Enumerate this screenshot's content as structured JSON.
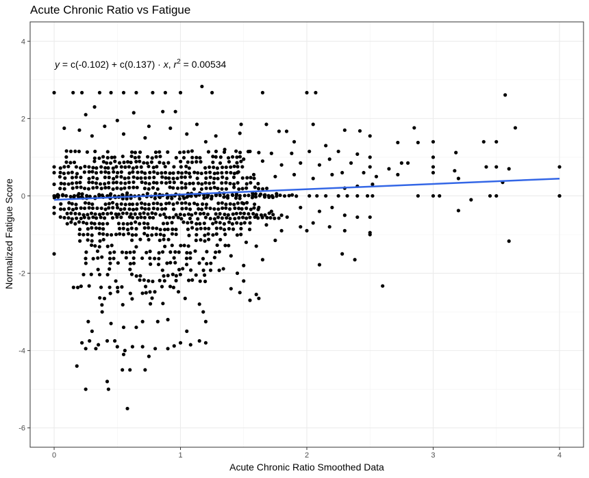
{
  "chart_data": {
    "type": "scatter",
    "title": "Acute Chronic Ratio vs Fatigue",
    "xlabel": "Acute Chronic Ratio Smoothed Data",
    "ylabel": "Normalized Fatigue Score",
    "xlim": [
      -0.19,
      4.19
    ],
    "ylim": [
      -6.5,
      4.5
    ],
    "x_ticks": [
      "0",
      "1",
      "2",
      "3",
      "4"
    ],
    "y_ticks": [
      "4",
      "2",
      "0",
      "-2",
      "-4",
      "-6"
    ],
    "grid": true,
    "theme": "black-and-white",
    "annotation": {
      "text_y": "y",
      "text_eq": " = c(-0.102) + c(0.137) · ",
      "text_x": "x",
      "text_sep": ",  ",
      "text_r": "r",
      "text_sup": "2",
      "text_val": " = 0.00534"
    },
    "regression": {
      "intercept": -0.102,
      "slope": 0.137,
      "r2": 0.00534,
      "color": "#3366e6",
      "x_range": [
        0,
        4
      ]
    },
    "point_color": "#000000",
    "points": [
      [
        0.0,
        2.67
      ],
      [
        0.15,
        2.67
      ],
      [
        0.22,
        2.67
      ],
      [
        0.36,
        2.67
      ],
      [
        0.45,
        2.67
      ],
      [
        0.55,
        2.67
      ],
      [
        0.65,
        2.67
      ],
      [
        0.78,
        2.67
      ],
      [
        0.88,
        2.67
      ],
      [
        1.0,
        2.67
      ],
      [
        1.17,
        2.83
      ],
      [
        1.25,
        2.67
      ],
      [
        1.65,
        2.67
      ],
      [
        2.0,
        2.67
      ],
      [
        2.07,
        2.67
      ],
      [
        3.57,
        2.61
      ],
      [
        0.32,
        2.3
      ],
      [
        0.25,
        2.1
      ],
      [
        0.63,
        2.15
      ],
      [
        0.86,
        2.18
      ],
      [
        0.96,
        2.18
      ],
      [
        0.5,
        1.95
      ],
      [
        0.2,
        1.7
      ],
      [
        0.08,
        1.75
      ],
      [
        0.4,
        1.8
      ],
      [
        0.75,
        1.8
      ],
      [
        0.92,
        1.75
      ],
      [
        1.13,
        1.85
      ],
      [
        1.48,
        1.85
      ],
      [
        1.68,
        1.85
      ],
      [
        2.05,
        1.85
      ],
      [
        2.3,
        1.7
      ],
      [
        2.42,
        1.68
      ],
      [
        2.85,
        1.76
      ],
      [
        3.65,
        1.76
      ],
      [
        1.78,
        1.67
      ],
      [
        1.84,
        1.67
      ],
      [
        0.3,
        1.55
      ],
      [
        0.55,
        1.6
      ],
      [
        0.72,
        1.5
      ],
      [
        1.05,
        1.6
      ],
      [
        1.28,
        1.55
      ],
      [
        1.47,
        1.62
      ],
      [
        2.5,
        1.55
      ],
      [
        3.0,
        1.4
      ],
      [
        3.4,
        1.4
      ],
      [
        3.5,
        1.4
      ],
      [
        2.72,
        1.38
      ],
      [
        2.88,
        1.38
      ],
      [
        1.9,
        1.4
      ],
      [
        2.15,
        1.3
      ],
      [
        1.2,
        1.4
      ],
      [
        1.35,
        1.2
      ],
      [
        1.55,
        1.15
      ],
      [
        1.62,
        1.12
      ],
      [
        1.72,
        1.1
      ],
      [
        1.88,
        1.1
      ],
      [
        2.02,
        1.15
      ],
      [
        2.25,
        1.15
      ],
      [
        2.4,
        1.08
      ],
      [
        3.18,
        1.12
      ],
      [
        3.0,
        1.0
      ],
      [
        2.5,
        1.0
      ],
      [
        1.5,
        0.95
      ],
      [
        1.65,
        0.9
      ],
      [
        1.8,
        0.8
      ],
      [
        1.95,
        0.85
      ],
      [
        2.1,
        0.8
      ],
      [
        2.18,
        0.95
      ],
      [
        2.35,
        0.85
      ],
      [
        2.5,
        0.75
      ],
      [
        2.65,
        0.7
      ],
      [
        2.75,
        0.85
      ],
      [
        2.8,
        0.85
      ],
      [
        3.0,
        0.75
      ],
      [
        3.17,
        0.65
      ],
      [
        3.42,
        0.75
      ],
      [
        3.5,
        0.75
      ],
      [
        3.6,
        0.7
      ],
      [
        4.0,
        0.75
      ],
      [
        1.45,
        0.6
      ],
      [
        1.58,
        0.55
      ],
      [
        1.75,
        0.5
      ],
      [
        1.9,
        0.55
      ],
      [
        2.05,
        0.45
      ],
      [
        2.2,
        0.55
      ],
      [
        2.28,
        0.6
      ],
      [
        2.45,
        0.6
      ],
      [
        2.55,
        0.5
      ],
      [
        2.72,
        0.55
      ],
      [
        3.0,
        0.6
      ],
      [
        3.2,
        0.45
      ],
      [
        3.55,
        0.35
      ],
      [
        2.4,
        0.25
      ],
      [
        2.3,
        0.2
      ],
      [
        2.52,
        0.3
      ],
      [
        0.0,
        0.75
      ],
      [
        0.0,
        0.6
      ],
      [
        0.05,
        0.72
      ],
      [
        0.0,
        0.3
      ],
      [
        0.0,
        -0.3
      ],
      [
        0.0,
        -0.45
      ],
      [
        0.0,
        -1.5
      ],
      [
        0.02,
        0.0
      ],
      [
        0.0,
        0.0
      ],
      [
        2.02,
        0.0
      ],
      [
        2.08,
        0.0
      ],
      [
        2.15,
        0.0
      ],
      [
        2.25,
        0.0
      ],
      [
        2.32,
        0.0
      ],
      [
        2.4,
        0.0
      ],
      [
        2.48,
        0.0
      ],
      [
        2.52,
        0.0
      ],
      [
        2.88,
        0.0
      ],
      [
        3.0,
        0.0
      ],
      [
        3.05,
        0.0
      ],
      [
        3.45,
        0.0
      ],
      [
        3.5,
        0.0
      ],
      [
        4.0,
        0.0
      ],
      [
        4.0,
        0.0
      ],
      [
        1.5,
        -0.2
      ],
      [
        1.62,
        -0.3
      ],
      [
        1.72,
        -0.4
      ],
      [
        1.8,
        -0.5
      ],
      [
        1.95,
        -0.3
      ],
      [
        2.1,
        -0.4
      ],
      [
        2.3,
        -0.5
      ],
      [
        2.4,
        -0.55
      ],
      [
        2.5,
        -0.55
      ],
      [
        2.2,
        -0.3
      ],
      [
        3.2,
        -0.38
      ],
      [
        3.3,
        -0.1
      ],
      [
        1.55,
        -0.7
      ],
      [
        1.68,
        -0.75
      ],
      [
        1.8,
        -0.9
      ],
      [
        1.95,
        -0.8
      ],
      [
        2.0,
        -0.9
      ],
      [
        2.05,
        -0.7
      ],
      [
        2.18,
        -0.8
      ],
      [
        2.3,
        -0.9
      ],
      [
        2.5,
        -0.95
      ],
      [
        1.75,
        -1.15
      ],
      [
        1.52,
        -1.2
      ],
      [
        1.6,
        -1.3
      ],
      [
        1.65,
        -1.65
      ],
      [
        2.5,
        -1.0
      ],
      [
        3.6,
        -1.17
      ],
      [
        1.4,
        -1.55
      ],
      [
        1.5,
        -1.8
      ],
      [
        2.1,
        -1.78
      ],
      [
        2.28,
        -1.5
      ],
      [
        2.38,
        -1.65
      ],
      [
        1.45,
        -2.0
      ],
      [
        1.5,
        -2.2
      ],
      [
        1.4,
        -2.4
      ],
      [
        1.47,
        -2.5
      ],
      [
        1.55,
        -2.7
      ],
      [
        1.6,
        -2.55
      ],
      [
        1.62,
        -2.65
      ],
      [
        2.6,
        -2.33
      ],
      [
        1.15,
        -2.8
      ],
      [
        1.18,
        -3.0
      ],
      [
        1.2,
        -3.25
      ],
      [
        1.05,
        -3.5
      ],
      [
        0.9,
        -3.2
      ],
      [
        0.82,
        -3.25
      ],
      [
        0.7,
        -3.25
      ],
      [
        0.65,
        -3.4
      ],
      [
        0.55,
        -3.4
      ],
      [
        0.45,
        -3.3
      ],
      [
        0.38,
        -3.0
      ],
      [
        0.27,
        -3.25
      ],
      [
        0.3,
        -3.5
      ],
      [
        0.48,
        -3.75
      ],
      [
        0.42,
        -3.75
      ],
      [
        0.35,
        -3.85
      ],
      [
        0.28,
        -3.75
      ],
      [
        0.22,
        -3.8
      ],
      [
        0.25,
        -3.95
      ],
      [
        0.33,
        -3.95
      ],
      [
        0.5,
        -3.9
      ],
      [
        0.56,
        -4.0
      ],
      [
        0.62,
        -3.9
      ],
      [
        0.7,
        -3.9
      ],
      [
        0.8,
        -3.95
      ],
      [
        0.9,
        -3.95
      ],
      [
        0.95,
        -3.88
      ],
      [
        1.0,
        -3.8
      ],
      [
        1.08,
        -3.85
      ],
      [
        1.15,
        -3.75
      ],
      [
        1.2,
        -3.8
      ],
      [
        0.55,
        -4.1
      ],
      [
        0.75,
        -4.15
      ],
      [
        0.18,
        -4.4
      ],
      [
        0.54,
        -4.5
      ],
      [
        0.6,
        -4.5
      ],
      [
        0.72,
        -4.5
      ],
      [
        0.25,
        -5.0
      ],
      [
        0.42,
        -4.8
      ],
      [
        0.43,
        -5.0
      ],
      [
        0.58,
        -5.5
      ]
    ]
  }
}
